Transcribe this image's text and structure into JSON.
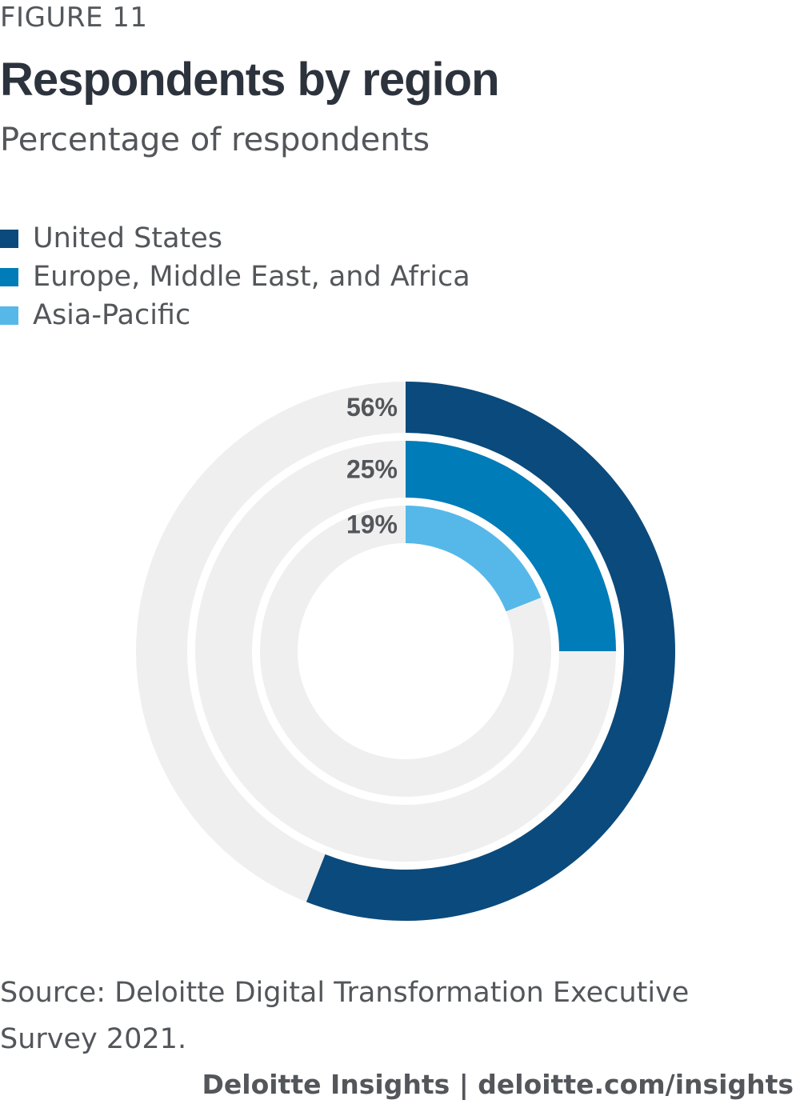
{
  "figure_label": "FIGURE 11",
  "footer": "Deloitte Insights | deloitte.com/insights",
  "chart_data": {
    "type": "pie",
    "title": "Respondents by region",
    "subtitle": "Percentage of respondents",
    "categories": [
      "United States",
      "Europe, Middle East, and Africa",
      "Asia-Pacific"
    ],
    "values": [
      56,
      25,
      19
    ],
    "unit": "%",
    "value_labels": [
      "56%",
      "25%",
      "19%"
    ],
    "colors": [
      "#0b4a7c",
      "#007cb8",
      "#55b8e9"
    ],
    "track_color": "#efefef",
    "legend_position": "top-left",
    "source": "Source: Deloitte Digital Transformation Executive Survey 2021."
  }
}
